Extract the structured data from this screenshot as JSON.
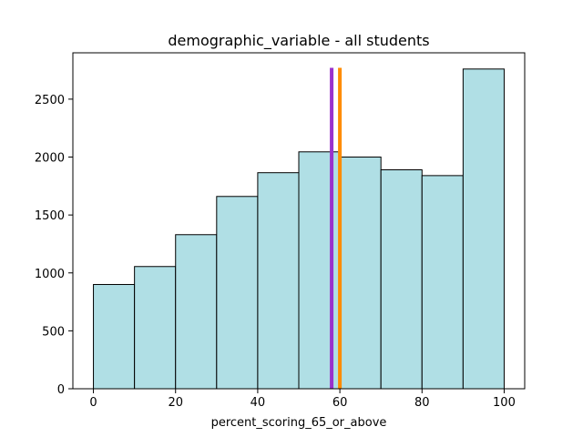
{
  "chart_data": {
    "type": "bar",
    "title": "demographic_variable - all students",
    "xlabel": "percent_scoring_65_or_above",
    "ylabel": "",
    "bin_edges": [
      0,
      10,
      20,
      30,
      40,
      50,
      60,
      70,
      80,
      90,
      100
    ],
    "values": [
      900,
      1055,
      1330,
      1660,
      1865,
      2045,
      2000,
      1890,
      1840,
      2760
    ],
    "xlim": [
      -5,
      105
    ],
    "ylim": [
      0,
      2900
    ],
    "xticks": [
      0,
      20,
      40,
      60,
      80,
      100
    ],
    "yticks": [
      0,
      500,
      1000,
      1500,
      2000,
      2500
    ],
    "grid": false,
    "bar_color": "#b0dfe5",
    "bar_edge_color": "#000000",
    "vlines": [
      {
        "x": 58,
        "color": "#9932cc"
      },
      {
        "x": 60,
        "color": "#ff8c00"
      }
    ],
    "vline_top": 2770
  }
}
